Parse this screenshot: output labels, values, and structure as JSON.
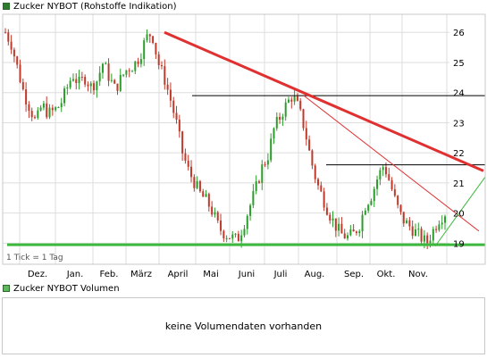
{
  "colors": {
    "swatch_price": "#2e7d2e",
    "swatch_volume": "#5cb85c",
    "grid": "#dedede",
    "up_candle": "#2a9d2a",
    "down_candle": "#c0392b",
    "trend_red": "#e03030",
    "support_green": "#3cb83c",
    "resistance_black": "#000000"
  },
  "price_legend": "Zucker NYBOT (Rohstoffe Indikation)",
  "volume_legend": "Zucker NYBOT Volumen",
  "tick_note": "1 Tick = 1 Tag",
  "no_volume_msg": "keine Volumendaten vorhanden",
  "chart_data": [
    {
      "type": "candlestick",
      "title": "Zucker NYBOT (Rohstoffe Indikation)",
      "x_tick_labels": [
        "Dez.",
        "Jan.",
        "Feb.",
        "März",
        "April",
        "Mai",
        "Juni",
        "Juli",
        "Aug.",
        "Sep.",
        "Okt.",
        "Nov."
      ],
      "y_tick_labels": [
        19,
        20,
        21,
        22,
        23,
        24,
        25,
        26
      ],
      "ylim": [
        18.3,
        26.6
      ],
      "grid": true,
      "legend_position": "top-left",
      "series": [
        {
          "values": [
            26.0,
            25.6,
            24.8,
            24.0,
            23.5,
            23.0,
            23.6,
            23.3,
            23.4,
            23.6,
            24.1,
            24.6,
            24.3,
            24.5,
            24.2,
            24.4,
            25.0,
            24.5,
            24.1,
            24.5,
            24.8,
            24.9,
            25.2,
            25.8,
            26.0,
            25.0,
            24.5,
            23.8,
            23.0,
            22.0,
            21.4,
            21.0,
            20.6,
            20.4,
            20.0,
            19.5,
            19.3,
            19.2,
            19.1,
            19.6,
            20.2,
            20.8,
            21.5,
            21.9,
            22.8,
            23.2,
            23.6,
            23.9,
            23.5,
            22.8,
            21.8,
            21.0,
            20.5,
            20.0,
            19.6,
            19.3,
            19.2,
            19.3,
            19.6,
            20.3,
            20.6,
            21.2,
            21.6,
            21.0,
            20.3,
            19.8,
            19.6,
            19.4,
            19.2,
            19.0,
            19.4,
            19.8,
            20.0
          ]
        },
        {
          "name": "Resistance trendline",
          "x": [
            "März",
            "Nov."
          ],
          "y": [
            26.0,
            21.4
          ]
        },
        {
          "name": "Inner trendline",
          "x": [
            "Juli",
            "Nov."
          ],
          "y": [
            23.9,
            19.4
          ]
        },
        {
          "name": "Horizontal resistance",
          "y": [
            23.9,
            21.6
          ]
        },
        {
          "name": "Support line",
          "y": [
            18.95
          ]
        },
        {
          "name": "Rising trendline",
          "x": [
            "Nov.",
            "Nov."
          ],
          "y": [
            18.9,
            21.2
          ]
        }
      ]
    },
    {
      "type": "bar",
      "title": "Zucker NYBOT Volumen",
      "series": []
    }
  ]
}
